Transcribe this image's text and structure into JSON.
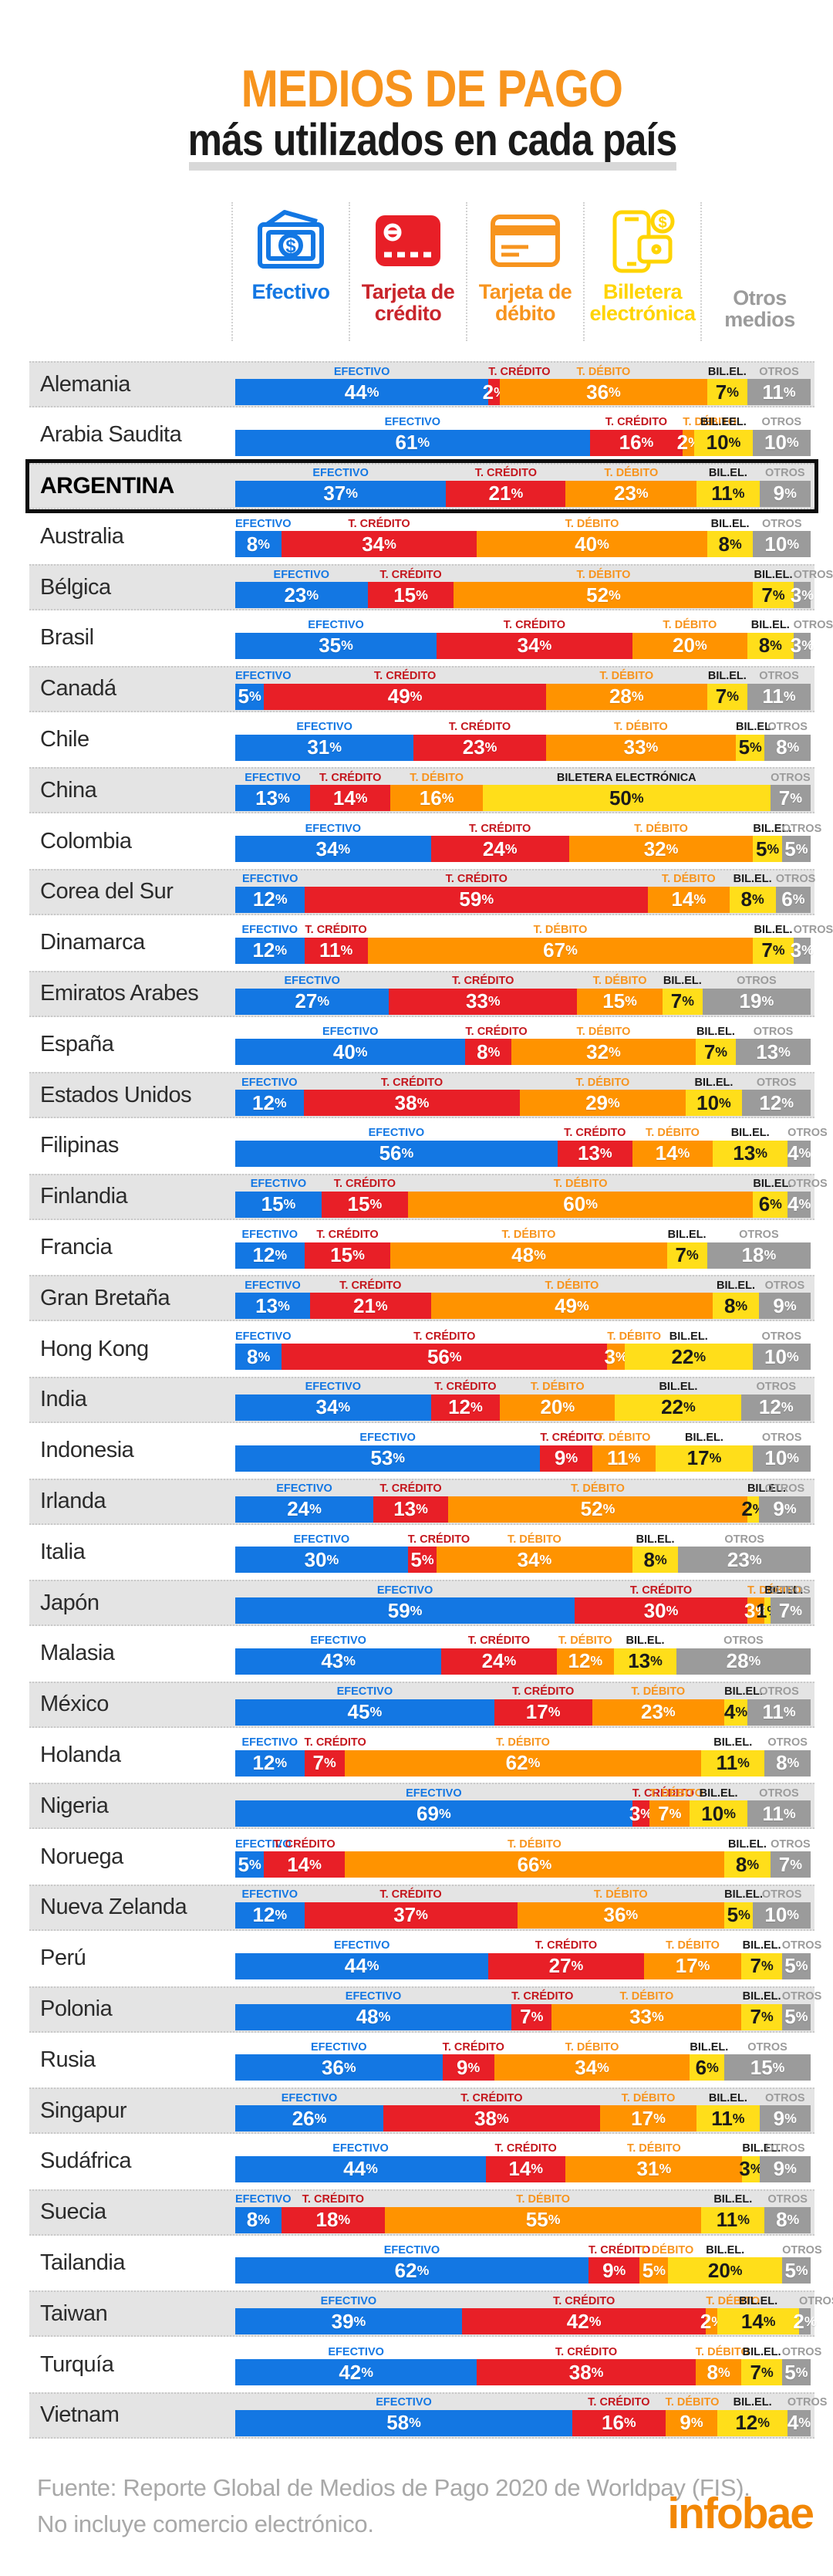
{
  "header": {
    "title": "MEDIOS DE PAGO",
    "subtitle": "más utilizados en cada país",
    "title_color": "#F7941E"
  },
  "legend": {
    "items": [
      {
        "label": "Efectivo",
        "color": "#1377E3",
        "icon": "banknote-icon"
      },
      {
        "label": "Tarjeta de crédito",
        "color": "#C9252B",
        "icon": "credit-card-icon"
      },
      {
        "label": "Tarjeta de débito",
        "color": "#F7941E",
        "icon": "debit-card-icon"
      },
      {
        "label": "Billetera electrónica",
        "color": "#FFD400",
        "icon": "ewallet-icon"
      },
      {
        "label": "Otros medios",
        "color": "#9B9B9B",
        "icon": null
      }
    ]
  },
  "chart_data": {
    "type": "bar",
    "stacked": true,
    "orientation": "horizontal",
    "unit": "%",
    "series_names": [
      "Efectivo",
      "Tarjeta de crédito",
      "Tarjeta de débito",
      "Billetera electrónica",
      "Otros medios"
    ],
    "colors": [
      "#1377E3",
      "#E81F27",
      "#FF9300",
      "#FFDE1A",
      "#9B9B9B"
    ],
    "label_colors": [
      "#1377E3",
      "#C4161D",
      "#F7941E",
      "#1a1a1a",
      "#9B9B9B"
    ],
    "segment_labels": {
      "efectivo": "EFECTIVO",
      "credito": "T. CRÉDITO",
      "debito": "T. DÉBITO",
      "billetera": "BIL.EL.",
      "otros": "OTROS"
    },
    "highlight_border_color": "#0d0d0d",
    "rows": [
      {
        "country": "Alemania",
        "values": [
          44,
          2,
          36,
          7,
          11
        ]
      },
      {
        "country": "Arabia Saudita",
        "values": [
          61,
          16,
          2,
          10,
          10
        ],
        "wallet_label": "BIL.EEL."
      },
      {
        "country": "ARGENTINA",
        "values": [
          37,
          21,
          23,
          11,
          9
        ],
        "highlight": true
      },
      {
        "country": "Australia",
        "values": [
          8,
          34,
          40,
          8,
          10
        ]
      },
      {
        "country": "Bélgica",
        "values": [
          23,
          15,
          52,
          7,
          3
        ]
      },
      {
        "country": "Brasil",
        "values": [
          35,
          34,
          20,
          8,
          3
        ]
      },
      {
        "country": "Canadá",
        "values": [
          5,
          49,
          28,
          7,
          11
        ]
      },
      {
        "country": "Chile",
        "values": [
          31,
          23,
          33,
          5,
          8
        ]
      },
      {
        "country": "China",
        "values": [
          13,
          14,
          16,
          50,
          7
        ],
        "wallet_label": "BILETERA ELECTRÓNICA"
      },
      {
        "country": "Colombia",
        "values": [
          34,
          24,
          32,
          5,
          5
        ]
      },
      {
        "country": "Corea del Sur",
        "values": [
          12,
          59,
          14,
          8,
          6
        ]
      },
      {
        "country": "Dinamarca",
        "values": [
          12,
          11,
          67,
          7,
          3
        ]
      },
      {
        "country": "Emiratos Arabes",
        "values": [
          27,
          33,
          15,
          7,
          19
        ]
      },
      {
        "country": "España",
        "values": [
          40,
          8,
          32,
          7,
          13
        ]
      },
      {
        "country": "Estados Unidos",
        "values": [
          12,
          38,
          29,
          10,
          12
        ]
      },
      {
        "country": "Filipinas",
        "values": [
          56,
          13,
          14,
          13,
          4
        ]
      },
      {
        "country": "Finlandia",
        "values": [
          15,
          15,
          60,
          6,
          4
        ]
      },
      {
        "country": "Francia",
        "values": [
          12,
          15,
          48,
          7,
          18
        ]
      },
      {
        "country": "Gran Bretaña",
        "values": [
          13,
          21,
          49,
          8,
          9
        ]
      },
      {
        "country": "Hong Kong",
        "values": [
          8,
          56,
          3,
          22,
          10
        ]
      },
      {
        "country": "India",
        "values": [
          34,
          12,
          20,
          22,
          12
        ]
      },
      {
        "country": "Indonesia",
        "values": [
          53,
          9,
          11,
          17,
          10
        ]
      },
      {
        "country": "Irlanda",
        "values": [
          24,
          13,
          52,
          2,
          9
        ]
      },
      {
        "country": "Italia",
        "values": [
          30,
          5,
          34,
          8,
          23
        ]
      },
      {
        "country": "Japón",
        "values": [
          59,
          30,
          3,
          1,
          7
        ]
      },
      {
        "country": "Malasia",
        "values": [
          43,
          24,
          12,
          13,
          28
        ]
      },
      {
        "country": "México",
        "values": [
          45,
          17,
          23,
          4,
          11
        ]
      },
      {
        "country": "Holanda",
        "values": [
          12,
          7,
          62,
          11,
          8
        ]
      },
      {
        "country": "Nigeria",
        "values": [
          69,
          3,
          7,
          10,
          11
        ]
      },
      {
        "country": "Noruega",
        "values": [
          5,
          14,
          66,
          8,
          7
        ]
      },
      {
        "country": "Nueva Zelanda",
        "values": [
          12,
          37,
          36,
          5,
          10
        ]
      },
      {
        "country": "Perú",
        "values": [
          44,
          27,
          17,
          7,
          5
        ]
      },
      {
        "country": "Polonia",
        "values": [
          48,
          7,
          33,
          7,
          5
        ]
      },
      {
        "country": "Rusia",
        "values": [
          36,
          9,
          34,
          6,
          15
        ]
      },
      {
        "country": "Singapur",
        "values": [
          26,
          38,
          17,
          11,
          9
        ]
      },
      {
        "country": "Sudáfrica",
        "values": [
          44,
          14,
          31,
          3,
          9
        ]
      },
      {
        "country": "Suecia",
        "values": [
          8,
          18,
          55,
          11,
          8
        ]
      },
      {
        "country": "Tailandia",
        "values": [
          62,
          9,
          5,
          20,
          5
        ]
      },
      {
        "country": "Taiwan",
        "values": [
          39,
          42,
          2,
          14,
          2
        ]
      },
      {
        "country": "Turquía",
        "values": [
          42,
          38,
          8,
          7,
          5
        ]
      },
      {
        "country": "Vietnam",
        "values": [
          58,
          16,
          9,
          12,
          4
        ]
      }
    ]
  },
  "footer": {
    "source_line1": "Fuente: Reporte Global de Medios de Pago 2020 de Worldpay (FIS).",
    "source_line2": "No incluye comercio electrónico.",
    "brand": "infobae",
    "brand_color": "#F28705"
  }
}
